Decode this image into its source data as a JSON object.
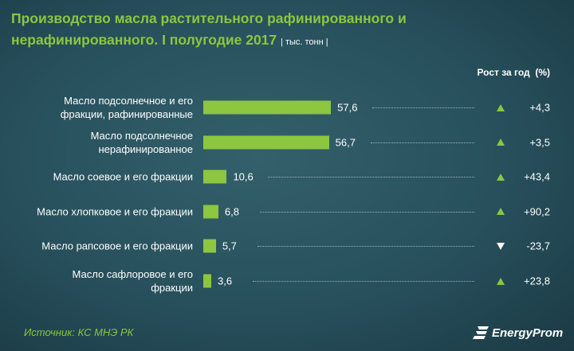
{
  "chart_data": {
    "type": "bar",
    "title": "Производство масла растительного рафинированного и нерафинированного. I полугодие 2017",
    "unit": "| тыс. тонн |",
    "growth_title": "Рост за год  (%)",
    "categories": [
      "Масло подсолнечное и его\nфракции, рафинированные",
      "Масло подсолнечное\nнерафинированное",
      "Масло соевое и его фракции",
      "Масло хлопковое и его фракции",
      "Масло рапсовое и его фракции",
      "Масло сафлоровое и его\nфракции"
    ],
    "values": [
      57.6,
      56.7,
      10.6,
      6.8,
      5.7,
      3.6
    ],
    "value_labels": [
      "57,6",
      "56,7",
      "10,6",
      "6,8",
      "5,7",
      "3,6"
    ],
    "color": "#8dc63f",
    "growth": [
      4.3,
      3.5,
      43.4,
      90.2,
      -23.7,
      23.8
    ],
    "growth_labels": [
      "+4,3",
      "+3,5",
      "+43,4",
      "+90,2",
      "-23,7",
      "+23,8"
    ],
    "source": "Источник: КС МНЭ РК",
    "logo": "EnergyProm"
  }
}
